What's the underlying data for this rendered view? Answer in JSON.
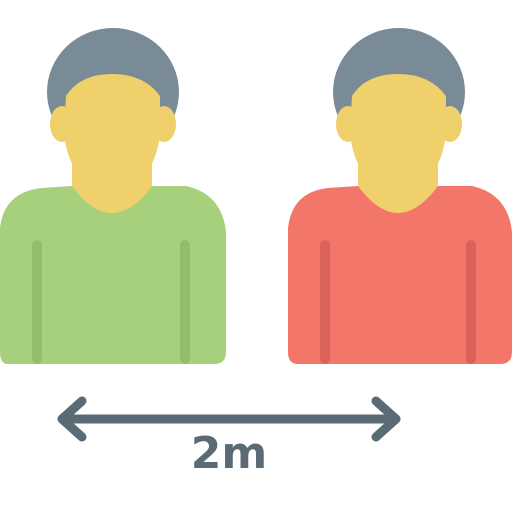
{
  "illustration": {
    "subject": "social-distancing",
    "distance_label": "2m"
  },
  "colors": {
    "hair": "#7a8b98",
    "skin": "#f0d06b",
    "left_shirt": "#a6d07b",
    "left_shirt_seam": "#93bd6c",
    "right_shirt": "#f3766a",
    "right_shirt_seam": "#d96357",
    "arrow": "#5b6b76"
  }
}
